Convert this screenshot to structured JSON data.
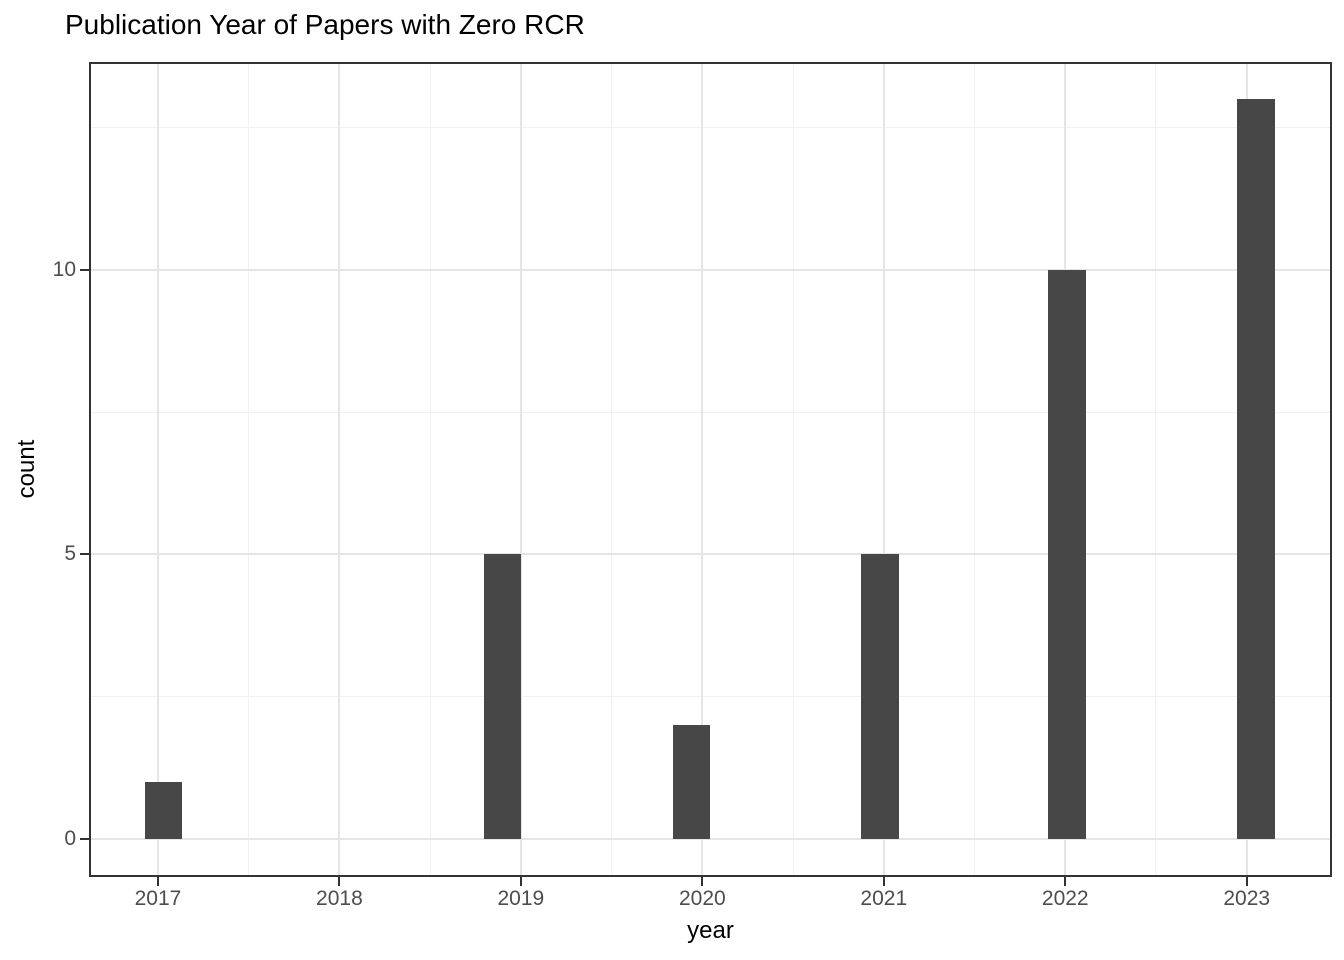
{
  "chart": {
    "title": "Publication Year of Papers with Zero RCR",
    "xlabel": "year",
    "ylabel": "count"
  },
  "chart_data": {
    "type": "bar",
    "title": "Publication Year of Papers with Zero RCR",
    "xlabel": "year",
    "ylabel": "count",
    "categories": [
      "2017",
      "2018",
      "2019",
      "2020",
      "2021",
      "2022",
      "2023"
    ],
    "values": [
      1,
      0,
      5,
      2,
      5,
      10,
      13
    ],
    "x_ticks": [
      2017,
      2018,
      2019,
      2020,
      2021,
      2022,
      2023
    ],
    "x_tick_labels": [
      "2017",
      "2018",
      "2019",
      "2020",
      "2021",
      "2022",
      "2023"
    ],
    "x_minor_ticks": [
      2017.5,
      2018.5,
      2019.5,
      2020.5,
      2021.5,
      2022.5
    ],
    "y_ticks": [
      0,
      5,
      10
    ],
    "y_tick_labels": [
      "0",
      "5",
      "10"
    ],
    "y_minor_ticks": [
      2.5,
      7.5,
      12.5
    ],
    "x_domain": [
      2016.62,
      2023.47
    ],
    "y_domain": [
      -0.67,
      13.65
    ],
    "bars": [
      {
        "year": "2017",
        "count": 1,
        "x_center": 2017.03
      },
      {
        "year": "2019",
        "count": 5,
        "x_center": 2018.9
      },
      {
        "year": "2020",
        "count": 2,
        "x_center": 2019.94
      },
      {
        "year": "2021",
        "count": 5,
        "x_center": 2020.98
      },
      {
        "year": "2022",
        "count": 10,
        "x_center": 2022.01
      },
      {
        "year": "2023",
        "count": 13,
        "x_center": 2023.05
      }
    ],
    "bar_width": 0.207,
    "grid": true,
    "legend": false,
    "colors": {
      "bar_fill": "#474747",
      "grid_major": "#e5e5e5",
      "grid_minor": "#f1f1f1",
      "panel_border": "#333333",
      "tick_mark": "#333333",
      "tick_label": "#4d4d4d",
      "text": "#000000",
      "background": "#ffffff"
    }
  }
}
